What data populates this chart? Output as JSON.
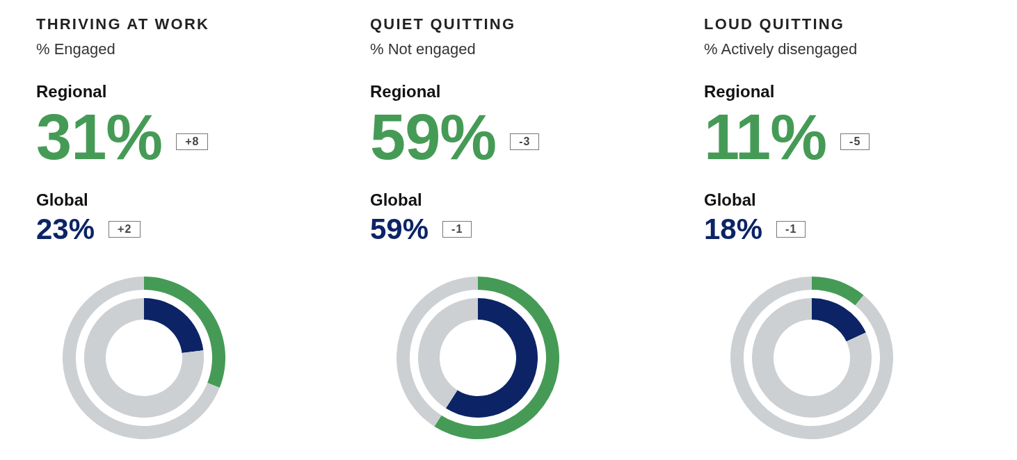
{
  "chart_data": [
    {
      "type": "donut",
      "title": "THRIVING AT WORK",
      "subtitle": "% Engaged",
      "categories": [
        null,
        null
      ],
      "annotations": [
        "31%",
        "+8"
      ],
      "series": [
        {
          "name": "Regional",
          "values": [
            31,
            69
          ],
          "colors": [
            "#459b56",
            "#cdd0d3"
          ]
        }
      ]
    },
    {
      "type": "donut",
      "categories": [
        null,
        null
      ],
      "annotations": [
        "23%",
        "+2"
      ],
      "series": [
        {
          "name": "Global",
          "values": [
            23,
            77
          ],
          "colors": [
            "#0c2466",
            "#cdd0d3"
          ]
        }
      ]
    },
    {
      "type": "donut",
      "title": "QUIET QUITTING",
      "subtitle": "% Not engaged",
      "categories": [
        null,
        null
      ],
      "annotations": [
        "59%",
        "-3"
      ],
      "series": [
        {
          "name": "Regional",
          "values": [
            59,
            41
          ],
          "colors": [
            "#459b56",
            "#cdd0d3"
          ]
        }
      ]
    },
    {
      "type": "donut",
      "categories": [
        null,
        null
      ],
      "annotations": [
        "59%",
        "-1"
      ],
      "series": [
        {
          "name": "Global",
          "values": [
            59,
            41
          ],
          "colors": [
            "#0c2466",
            "#cdd0d3"
          ]
        }
      ]
    },
    {
      "type": "donut",
      "title": "LOUD QUITTING",
      "subtitle": "% Actively disengaged",
      "categories": [
        null,
        null
      ],
      "annotations": [
        "11%",
        "-5"
      ],
      "series": [
        {
          "name": "Regional",
          "values": [
            11,
            89
          ],
          "colors": [
            "#459b56",
            "#cdd0d3"
          ]
        }
      ]
    },
    {
      "type": "donut",
      "categories": [
        null,
        null
      ],
      "annotations": [
        "18%",
        "-1"
      ],
      "series": [
        {
          "name": "Global",
          "values": [
            18,
            82
          ],
          "colors": [
            "#0c2466",
            "#cdd0d3"
          ]
        }
      ]
    }
  ]
}
